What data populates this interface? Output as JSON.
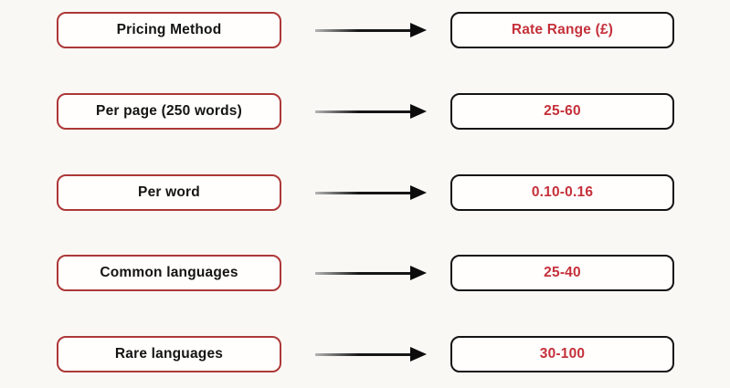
{
  "diagram": {
    "description": "Translation pricing methods mapped to rate ranges",
    "rows": [
      {
        "left": "Pricing Method",
        "right": "Rate Range (£)"
      },
      {
        "left": "Per page (250 words)",
        "right": "25-60"
      },
      {
        "left": "Per word",
        "right": "0.10-0.16"
      },
      {
        "left": "Common languages",
        "right": "25-40"
      },
      {
        "left": "Rare languages",
        "right": "30-100"
      }
    ]
  },
  "colors": {
    "background": "#faf8f5",
    "box_background": "#fffefd",
    "left_box_border_red": "#ad3838",
    "right_box_border_black": "#141414",
    "rate_text_red": "#c5303a",
    "method_text_black": "#141414",
    "arrow_black": "#0c0c0c"
  }
}
